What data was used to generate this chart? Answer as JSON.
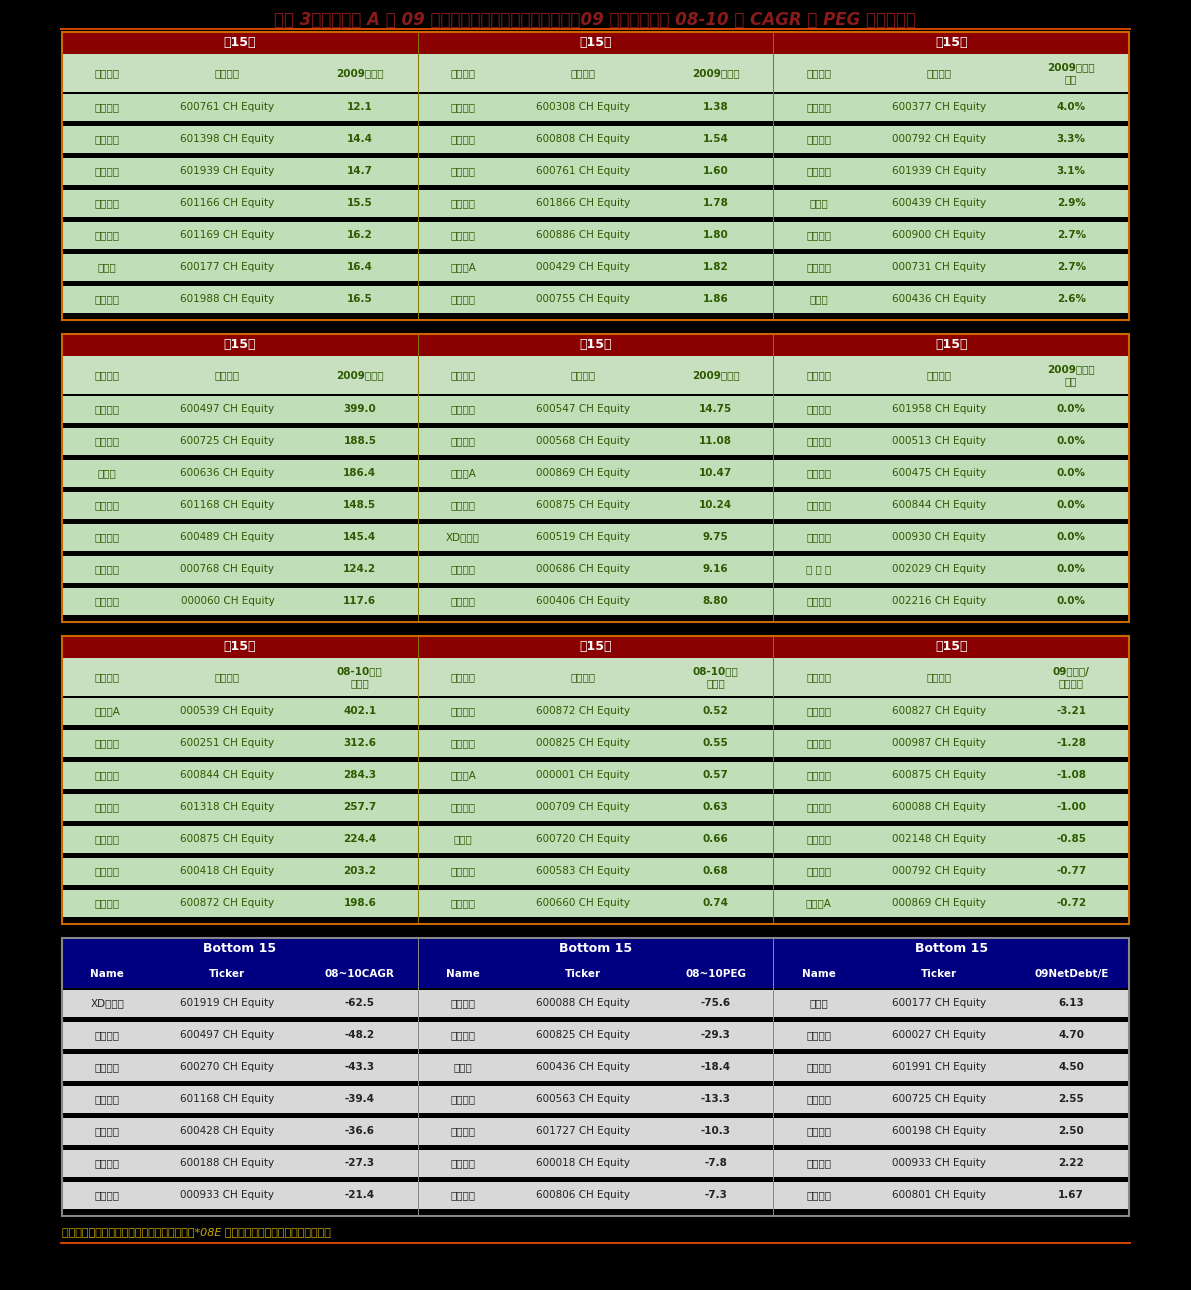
{
  "title": "图表 3：中金覆盖 A 股 09 年市盈率，市净率，股息收益率，09 年负债率以及 08-10 年 CAGR 和 PEG 等指标排序",
  "title_color": "#8B1A1A",
  "bg_color": "#000000",
  "footer_text": "资料来源：彭博资讯，中金公司研究部。注：*08E 负债率是由市场预测数据计算得出。",
  "section1": {
    "header_label": "前15名",
    "col_titles": [
      "前15名",
      "前15名",
      "前15名"
    ],
    "col_headers": [
      [
        "公司名称",
        "股票代码",
        "2009市盈率"
      ],
      [
        "公司名称",
        "股票代码",
        "2009市净率"
      ],
      [
        "公司名称",
        "股票代码",
        "2009分红收\n益率"
      ]
    ],
    "rows": [
      [
        [
          "安徽合力",
          "600761 CH Equity",
          "12.1"
        ],
        [
          "华泰股份",
          "600308 CH Equity",
          "1.38"
        ],
        [
          "宁沪高速",
          "600377 CH Equity",
          "4.0%"
        ]
      ],
      [
        [
          "工商银行",
          "601398 CH Equity",
          "14.4"
        ],
        [
          "马钢股份",
          "600808 CH Equity",
          "1.54"
        ],
        [
          "盐湖钾肥",
          "000792 CH Equity",
          "3.3%"
        ]
      ],
      [
        [
          "建设银行",
          "601939 CH Equity",
          "14.7"
        ],
        [
          "安徽合力",
          "600761 CH Equity",
          "1.60"
        ],
        [
          "建设银行",
          "601939 CH Equity",
          "3.1%"
        ]
      ],
      [
        [
          "兴业银行",
          "601166 CH Equity",
          "15.5"
        ],
        [
          "中海集运",
          "601866 CH Equity",
          "1.78"
        ],
        [
          "瑞贝卡",
          "600439 CH Equity",
          "2.9%"
        ]
      ],
      [
        [
          "北京银行",
          "601169 CH Equity",
          "16.2"
        ],
        [
          "国投电力",
          "600886 CH Equity",
          "1.80"
        ],
        [
          "长江电力",
          "600900 CH Equity",
          "2.7%"
        ]
      ],
      [
        [
          "雅戈尔",
          "600177 CH Equity",
          "16.4"
        ],
        [
          "粤高速A",
          "000429 CH Equity",
          "1.82"
        ],
        [
          "四川美丰",
          "000731 CH Equity",
          "2.7%"
        ]
      ],
      [
        [
          "中国银行",
          "601988 CH Equity",
          "16.5"
        ],
        [
          "山西三维",
          "000755 CH Equity",
          "1.86"
        ],
        [
          "片仔癀",
          "600436 CH Equity",
          "2.6%"
        ]
      ]
    ]
  },
  "section2": {
    "header_label": "后15名",
    "col_titles": [
      "后15名",
      "后15名",
      "后15名"
    ],
    "col_headers": [
      [
        "公司名称",
        "股票代码",
        "2009市盈率"
      ],
      [
        "公司名称",
        "股票代码",
        "2009市净率"
      ],
      [
        "公司名称",
        "股票代码",
        "2009分红收\n益率"
      ]
    ],
    "rows": [
      [
        [
          "驰宏锌锗",
          "600497 CH Equity",
          "399.0"
        ],
        [
          "山东黄金",
          "600547 CH Equity",
          "14.75"
        ],
        [
          "金钼股份",
          "601958 CH Equity",
          "0.0%"
        ]
      ],
      [
        [
          "云维股份",
          "600725 CH Equity",
          "188.5"
        ],
        [
          "泸州老窖",
          "000568 CH Equity",
          "11.08"
        ],
        [
          "丽珠集团",
          "000513 CH Equity",
          "0.0%"
        ]
      ],
      [
        [
          "三爱富",
          "600636 CH Equity",
          "186.4"
        ],
        [
          "张　裕A",
          "000869 CH Equity",
          "10.47"
        ],
        [
          "华光股份",
          "600475 CH Equity",
          "0.0%"
        ]
      ],
      [
        [
          "西部矿业",
          "601168 CH Equity",
          "148.5"
        ],
        [
          "东方电气",
          "600875 CH Equity",
          "10.24"
        ],
        [
          "井化科技",
          "600844 CH Equity",
          "0.0%"
        ]
      ],
      [
        [
          "中金黄金",
          "600489 CH Equity",
          "145.4"
        ],
        [
          "XD贵州茅",
          "600519 CH Equity",
          "9.75"
        ],
        [
          "丰原生化",
          "000930 CH Equity",
          "0.0%"
        ]
      ],
      [
        [
          "西飞国际",
          "000768 CH Equity",
          "124.2"
        ],
        [
          "东北证券",
          "000686 CH Equity",
          "9.16"
        ],
        [
          "七 匹 狼",
          "002029 CH Equity",
          "0.0%"
        ]
      ],
      [
        [
          "中金岭南",
          "000060 CH Equity",
          "117.6"
        ],
        [
          "国电南瑞",
          "600406 CH Equity",
          "8.80"
        ],
        [
          "三全食品",
          "002216 CH Equity",
          "0.0%"
        ]
      ]
    ]
  },
  "section3": {
    "header_label": "前15名",
    "col_titles": [
      "前15名",
      "前15名",
      "前15名"
    ],
    "col_headers": [
      [
        "公司名称",
        "股票代码",
        "08-10复合\n增长率"
      ],
      [
        "公司名称",
        "股票代码",
        "08-10市盈\n增长率"
      ],
      [
        "公司名称",
        "股票代码",
        "09净债务/\n股东权益"
      ]
    ],
    "rows": [
      [
        [
          "粤电力A",
          "000539 CH Equity",
          "402.1"
        ],
        [
          "中矩高新",
          "600872 CH Equity",
          "0.52"
        ],
        [
          "友谊股份",
          "600827 CH Equity",
          "-3.21"
        ]
      ],
      [
        [
          "冠农股份",
          "600251 CH Equity",
          "312.6"
        ],
        [
          "太钢不锈",
          "000825 CH Equity",
          "0.55"
        ],
        [
          "广州友谊",
          "000987 CH Equity",
          "-1.28"
        ]
      ],
      [
        [
          "井化科技",
          "600844 CH Equity",
          "284.3"
        ],
        [
          "深发展A",
          "000001 CH Equity",
          "0.57"
        ],
        [
          "东方电气",
          "600875 CH Equity",
          "-1.08"
        ]
      ],
      [
        [
          "中国平安",
          "601318 CH Equity",
          "257.7"
        ],
        [
          "唐钢股份",
          "000709 CH Equity",
          "0.63"
        ],
        [
          "中视传媒",
          "600088 CH Equity",
          "-1.00"
        ]
      ],
      [
        [
          "东方电气",
          "600875 CH Equity",
          "224.4"
        ],
        [
          "祁连山",
          "600720 CH Equity",
          "0.66"
        ],
        [
          "北纬通信",
          "002148 CH Equity",
          "-0.85"
        ]
      ],
      [
        [
          "江淮汽车",
          "600418 CH Equity",
          "203.2"
        ],
        [
          "海油工程",
          "600583 CH Equity",
          "0.68"
        ],
        [
          "盐湖钾肥",
          "000792 CH Equity",
          "-0.77"
        ]
      ],
      [
        [
          "中矩高新",
          "600872 CH Equity",
          "198.6"
        ],
        [
          "福耀玻璃",
          "600660 CH Equity",
          "0.74"
        ],
        [
          "张　裕A",
          "000869 CH Equity",
          "-0.72"
        ]
      ]
    ]
  },
  "section4": {
    "col_titles": [
      "Bottom 15",
      "Bottom 15",
      "Bottom 15"
    ],
    "col_headers": [
      [
        "Name",
        "Ticker",
        "08~10CAGR"
      ],
      [
        "Name",
        "Ticker",
        "08~10PEG"
      ],
      [
        "Name",
        "Ticker",
        "09NetDebt/E"
      ]
    ],
    "rows": [
      [
        [
          "XD中国远",
          "601919 CH Equity",
          "-62.5"
        ],
        [
          "中视传媒",
          "600088 CH Equity",
          "-75.6"
        ],
        [
          "雅戈尔",
          "600177 CH Equity",
          "6.13"
        ]
      ],
      [
        [
          "驰宏锌锗",
          "600497 CH Equity",
          "-48.2"
        ],
        [
          "新华传媒",
          "600825 CH Equity",
          "-29.3"
        ],
        [
          "华电国际",
          "600027 CH Equity",
          "4.70"
        ]
      ],
      [
        [
          "外运发展",
          "600270 CH Equity",
          "-43.3"
        ],
        [
          "片仔癀",
          "600436 CH Equity",
          "-18.4"
        ],
        [
          "大唐发电",
          "601991 CH Equity",
          "4.50"
        ]
      ],
      [
        [
          "西部矿业",
          "601168 CH Equity",
          "-39.4"
        ],
        [
          "法拉电子",
          "600563 CH Equity",
          "-13.3"
        ],
        [
          "云维股份",
          "600725 CH Equity",
          "2.55"
        ]
      ],
      [
        [
          "中远航运",
          "600428 CH Equity",
          "-36.6"
        ],
        [
          "上海电气",
          "601727 CH Equity",
          "-10.3"
        ],
        [
          "大唐电信",
          "600198 CH Equity",
          "2.50"
        ]
      ],
      [
        [
          "兖州煤业",
          "600188 CH Equity",
          "-27.3"
        ],
        [
          "上港集团",
          "600018 CH Equity",
          "-7.8"
        ],
        [
          "神火股份",
          "000933 CH Equity",
          "2.22"
        ]
      ],
      [
        [
          "神火股份",
          "000933 CH Equity",
          "-21.4"
        ],
        [
          "昆明机床",
          "600806 CH Equity",
          "-7.3"
        ],
        [
          "华新水泥",
          "600801 CH Equity",
          "1.67"
        ]
      ]
    ]
  }
}
